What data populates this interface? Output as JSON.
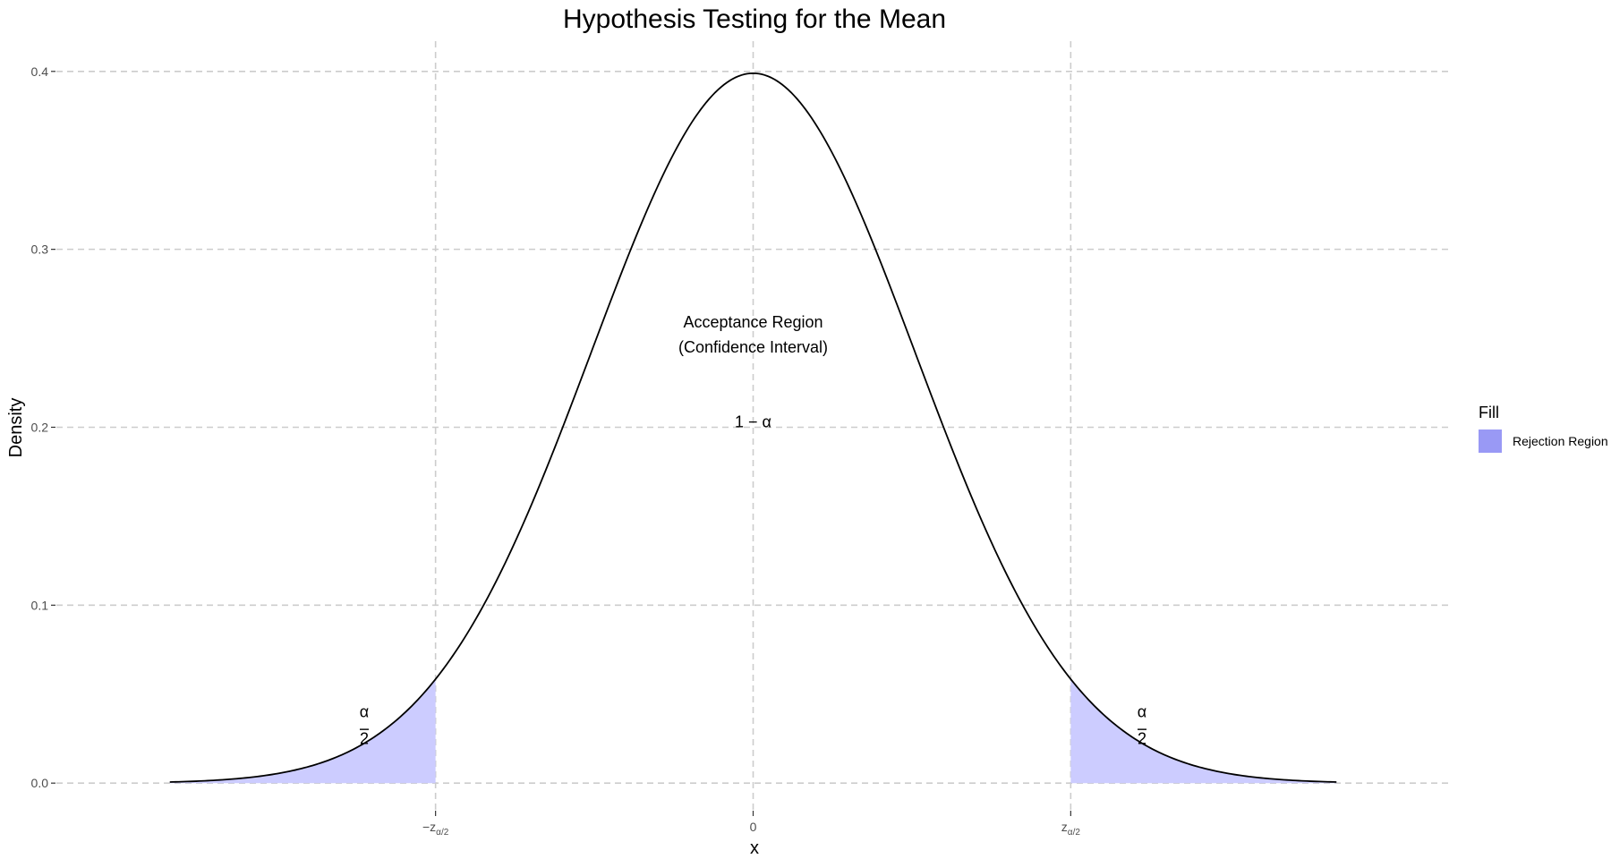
{
  "chart_data": {
    "type": "area",
    "title": "Hypothesis Testing for the Mean",
    "xlabel": "x",
    "ylabel": "Density",
    "xlim": [
      -3.6,
      3.6
    ],
    "ylim": [
      0,
      0.4
    ],
    "yticks": [
      {
        "value": 0.0,
        "label": "0.0"
      },
      {
        "value": 0.1,
        "label": "0.1"
      },
      {
        "value": 0.2,
        "label": "0.2"
      },
      {
        "value": 0.3,
        "label": "0.3"
      },
      {
        "value": 0.4,
        "label": "0.4"
      }
    ],
    "xticks": [
      {
        "value": -1.96,
        "label": "−z",
        "sub": "α/2"
      },
      {
        "value": 0,
        "label": "0",
        "sub": ""
      },
      {
        "value": 1.96,
        "label": "z",
        "sub": "α/2"
      }
    ],
    "grid": true,
    "distribution": "standard normal",
    "x_range": [
      -3.6,
      3.6
    ],
    "critical_values": [
      -1.96,
      1.96
    ],
    "series": [
      {
        "name": "Rejection Region",
        "color": "#ccccff",
        "regions": [
          [
            -3.6,
            -1.96
          ],
          [
            1.96,
            3.6
          ]
        ]
      }
    ],
    "curve_color": "#000000",
    "annotations": [
      {
        "text": "Acceptance Region",
        "x": 0,
        "y": 0.256
      },
      {
        "text": "(Confidence Interval)",
        "x": 0,
        "y": 0.242
      },
      {
        "text": "1 − α",
        "x": 0,
        "y": 0.2
      },
      {
        "text": "α",
        "x": -2.4,
        "y": 0.037
      },
      {
        "text": "2",
        "x": -2.4,
        "y": 0.022
      },
      {
        "text": "α",
        "x": 2.4,
        "y": 0.037
      },
      {
        "text": "2",
        "x": 2.4,
        "y": 0.022
      }
    ],
    "legend": {
      "title": "Fill",
      "placement": "right",
      "items": [
        {
          "label": "Rejection Region",
          "color": "#9999f5"
        }
      ]
    }
  }
}
